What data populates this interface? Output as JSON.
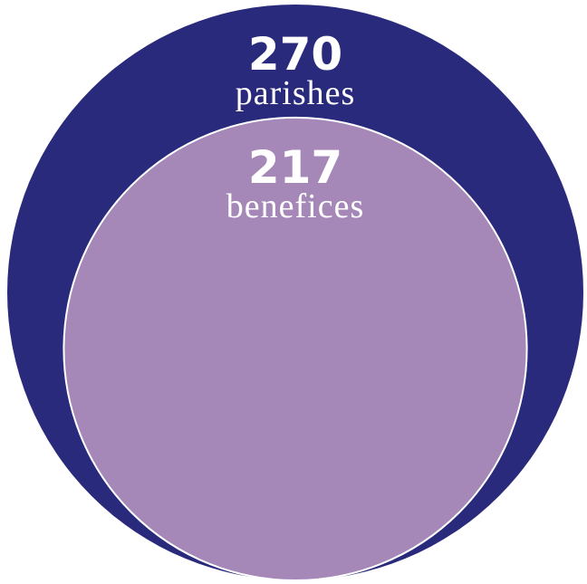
{
  "chart_data": {
    "type": "nested-circles",
    "categories": [
      "parishes",
      "benefices"
    ],
    "values": [
      270,
      217
    ],
    "colors": [
      "#2a2a7c",
      "#a688b8"
    ]
  }
}
